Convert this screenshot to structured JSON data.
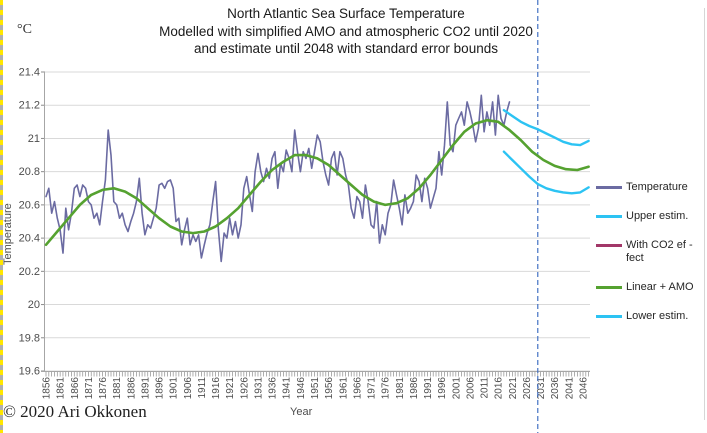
{
  "window": {
    "copyright": "© 2020 Ari Okkonen"
  },
  "chart": {
    "title_lines": [
      "North Atlantic Sea Surface Temperature",
      "Modelled with simplified AMO and atmospheric CO2 until 2020",
      "and estimate until 2048 with standard error bounds"
    ],
    "y_axis": {
      "unit": "°C",
      "title": "Temperature",
      "tick_labels": [
        "21.4",
        "21.2",
        "21",
        "20.8",
        "20.6",
        "20.4",
        "20.2",
        "20",
        "19.8",
        "19.6"
      ],
      "tick_values": [
        21.4,
        21.2,
        21,
        20.8,
        20.6,
        20.4,
        20.2,
        20,
        19.8,
        19.6
      ]
    },
    "x_axis": {
      "title": "Year",
      "labels": [
        "1856",
        "1861",
        "1866",
        "1871",
        "1876",
        "1881",
        "1886",
        "1891",
        "1896",
        "1901",
        "1906",
        "1911",
        "1916",
        "1921",
        "1926",
        "1931",
        "1936",
        "1941",
        "1946",
        "1951",
        "1956",
        "1961",
        "1966",
        "1971",
        "1976",
        "1981",
        "1986",
        "1991",
        "1996",
        "2001",
        "2006",
        "2011",
        "2016",
        "2021",
        "2026",
        "2031",
        "2036",
        "2041",
        "2046"
      ]
    },
    "legend": {
      "items": [
        {
          "id": "temperature",
          "label_lines": [
            "Temperature"
          ],
          "color": "#6b6ba2"
        },
        {
          "id": "upper-estim",
          "label_lines": [
            "Upper estim."
          ],
          "color": "#2cc3f3"
        },
        {
          "id": "with-co2-effect",
          "label_lines": [
            "With CO2 ef -",
            "fect"
          ],
          "color": "#a23768"
        },
        {
          "id": "linear-amo",
          "label_lines": [
            "Linear + AMO"
          ],
          "color": "#55a230"
        },
        {
          "id": "lower-estim",
          "label_lines": [
            "Lower estim."
          ],
          "color": "#2cc3f3"
        }
      ]
    },
    "colors": {
      "gridline": "#d9d9d9",
      "axis_line": "#a6a6a6",
      "tick_mark": "#8c8c8c",
      "tick_text": "#4d4d4d",
      "page_break_line": "#4472c4",
      "marquee_yellow": "#ffe600"
    }
  },
  "chart_data": {
    "type": "line",
    "title": "North Atlantic Sea Surface Temperature",
    "xlabel": "Year",
    "ylabel": "Temperature (°C)",
    "xlim": [
      1856,
      2049
    ],
    "ylim": [
      19.6,
      21.4
    ],
    "x_tick_step": 5,
    "grid": true,
    "legend_position": "right",
    "page_break_year": 2030,
    "series": [
      {
        "name": "Temperature",
        "color": "#6b6ba2",
        "width": 1.6,
        "x_start": 1856,
        "x_step": 1,
        "values": [
          20.65,
          20.7,
          20.55,
          20.62,
          20.52,
          20.45,
          20.31,
          20.58,
          20.45,
          20.55,
          20.7,
          20.72,
          20.65,
          20.72,
          20.7,
          20.62,
          20.6,
          20.52,
          20.55,
          20.48,
          20.62,
          20.75,
          21.05,
          20.9,
          20.62,
          20.6,
          20.52,
          20.55,
          20.48,
          20.44,
          20.5,
          20.55,
          20.62,
          20.76,
          20.55,
          20.42,
          20.48,
          20.46,
          20.52,
          20.58,
          20.72,
          20.73,
          20.7,
          20.74,
          20.75,
          20.7,
          20.5,
          20.52,
          20.36,
          20.45,
          20.52,
          20.36,
          20.42,
          20.38,
          20.42,
          20.28,
          20.36,
          20.43,
          20.48,
          20.62,
          20.74,
          20.45,
          20.26,
          20.43,
          20.4,
          20.52,
          20.42,
          20.5,
          20.4,
          20.48,
          20.7,
          20.77,
          20.66,
          20.56,
          20.8,
          20.91,
          20.8,
          20.74,
          20.82,
          20.76,
          20.88,
          20.92,
          20.7,
          20.85,
          20.8,
          20.93,
          20.88,
          20.8,
          21.05,
          20.92,
          20.8,
          20.92,
          20.88,
          20.94,
          20.82,
          20.92,
          21.02,
          20.98,
          20.86,
          20.78,
          20.72,
          20.88,
          20.92,
          20.78,
          20.92,
          20.88,
          20.78,
          20.72,
          20.58,
          20.52,
          20.65,
          20.62,
          20.52,
          20.72,
          20.62,
          20.48,
          20.46,
          20.62,
          20.37,
          20.48,
          20.42,
          20.55,
          20.6,
          20.75,
          20.66,
          20.58,
          20.48,
          20.66,
          20.55,
          20.58,
          20.62,
          20.78,
          20.74,
          20.62,
          20.76,
          20.7,
          20.58,
          20.64,
          20.7,
          20.92,
          20.78,
          20.96,
          21.22,
          20.96,
          20.92,
          21.08,
          21.12,
          21.16,
          21.08,
          21.22,
          21.16,
          21.08,
          20.98,
          21.06,
          21.26,
          21.04,
          21.16,
          21.08,
          21.22,
          21.02,
          21.26,
          21.12,
          21.08,
          21.16,
          21.22
        ]
      },
      {
        "name": "Upper estim.",
        "color": "#2cc3f3",
        "width": 2.4,
        "x": [
          2018,
          2021,
          2024,
          2027,
          2030,
          2033,
          2036,
          2039,
          2042,
          2045,
          2048
        ],
        "values": [
          21.17,
          21.135,
          21.1,
          21.075,
          21.055,
          21.03,
          21.005,
          20.98,
          20.965,
          20.96,
          20.985
        ]
      },
      {
        "name": "With CO2 effect",
        "color": "#a23768",
        "width": 2.0,
        "x_start": 1856,
        "x_step": 4,
        "values": [
          20.36,
          20.44,
          20.52,
          20.6,
          20.66,
          20.69,
          20.7,
          20.68,
          20.64,
          20.58,
          20.52,
          20.47,
          20.44,
          20.43,
          20.44,
          20.47,
          20.52,
          20.58,
          20.66,
          20.74,
          20.81,
          20.86,
          20.9,
          20.9,
          20.88,
          20.84,
          20.78,
          20.72,
          20.66,
          20.62,
          20.6,
          20.61,
          20.64,
          20.7,
          20.78,
          20.87,
          20.96,
          21.04,
          21.09,
          21.11,
          21.1,
          21.05,
          20.99,
          20.92,
          20.87,
          20.835,
          20.815,
          20.81,
          20.83
        ]
      },
      {
        "name": "Linear + AMO",
        "color": "#55a230",
        "width": 2.6,
        "x_start": 1856,
        "x_step": 4,
        "values": [
          20.36,
          20.44,
          20.52,
          20.6,
          20.66,
          20.69,
          20.7,
          20.68,
          20.64,
          20.58,
          20.52,
          20.47,
          20.44,
          20.43,
          20.44,
          20.47,
          20.52,
          20.58,
          20.66,
          20.74,
          20.81,
          20.86,
          20.9,
          20.9,
          20.88,
          20.84,
          20.78,
          20.72,
          20.66,
          20.62,
          20.6,
          20.61,
          20.64,
          20.7,
          20.78,
          20.87,
          20.96,
          21.04,
          21.09,
          21.11,
          21.1,
          21.05,
          20.99,
          20.92,
          20.87,
          20.835,
          20.815,
          20.81,
          20.83
        ]
      },
      {
        "name": "Lower estim.",
        "color": "#2cc3f3",
        "width": 2.4,
        "x": [
          2018,
          2021,
          2024,
          2027,
          2030,
          2033,
          2036,
          2039,
          2042,
          2045,
          2048
        ],
        "values": [
          20.92,
          20.87,
          20.82,
          20.77,
          20.725,
          20.7,
          20.685,
          20.675,
          20.67,
          20.675,
          20.705
        ]
      }
    ]
  }
}
